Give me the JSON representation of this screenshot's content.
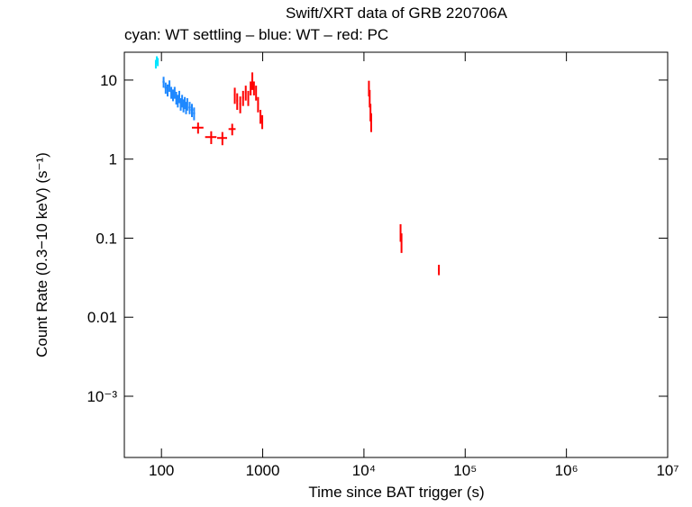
{
  "chart_data": {
    "type": "errorbar-scatter",
    "title": "Swift/XRT data of GRB 220706A",
    "subtitle": "cyan: WT settling – blue: WT – red: PC",
    "x_label": "Time since BAT trigger (s)",
    "y_label": "Count Rate (0.3−10 keV) (s⁻¹)",
    "x_log": true,
    "y_log": true,
    "xlim": [
      43,
      10000000
    ],
    "ylim": [
      0.000168,
      22.5
    ],
    "xticks": [
      100,
      1000,
      {
        "value": 10000,
        "label": "10⁴"
      },
      {
        "value": 100000,
        "label": "10⁵"
      },
      {
        "value": 1000000,
        "label": "10⁶"
      },
      {
        "value": 10000000,
        "label": "10⁷"
      }
    ],
    "yticks": [
      10,
      1,
      0.1,
      0.01,
      {
        "value": 0.001,
        "label": "10⁻³"
      }
    ],
    "series": [
      {
        "name": "WT settling",
        "color": "#00e5ff",
        "x": [
          88,
          90,
          92
        ],
        "values": [
          16,
          18,
          17
        ],
        "xerr": [
          1,
          1,
          1
        ],
        "yerr": [
          2,
          2,
          2
        ]
      },
      {
        "name": "WT",
        "color": "#1e88ff",
        "x": [
          105,
          110,
          115,
          120,
          125,
          130,
          135,
          140,
          145,
          150,
          155,
          160,
          165,
          170,
          175,
          180,
          190,
          200,
          210
        ],
        "values": [
          9.5,
          8,
          7.5,
          8.5,
          7,
          6.5,
          7,
          6,
          5.5,
          6.2,
          5,
          5.5,
          4.8,
          5.2,
          4.5,
          5,
          4.5,
          4.2,
          3.8
        ],
        "xerr": [
          2.5,
          2.5,
          2.5,
          2.5,
          2.5,
          2.5,
          2.5,
          2.5,
          2.5,
          2.5,
          2.5,
          2.5,
          2.5,
          2.5,
          2.5,
          2.5,
          5,
          5,
          5
        ],
        "yerr": [
          1.5,
          1.3,
          1.3,
          1.4,
          1.2,
          1.1,
          1.2,
          1.1,
          1,
          1.1,
          0.9,
          1,
          0.9,
          0.9,
          0.8,
          0.9,
          0.8,
          0.8,
          0.7
        ]
      },
      {
        "name": "PC",
        "color": "#ff0000",
        "x": [
          230,
          310,
          400,
          500,
          530,
          560,
          600,
          640,
          680,
          720,
          760,
          790,
          820,
          860,
          900,
          950,
          990,
          11200,
          11400,
          11600,
          11800,
          23000,
          23500,
          55000
        ],
        "values": [
          2.5,
          1.9,
          1.85,
          2.4,
          6.5,
          5.5,
          5,
          6,
          7,
          6,
          8,
          10,
          8,
          7,
          5,
          3.5,
          3,
          8,
          6,
          4,
          3,
          0.12,
          0.09,
          0.04
        ],
        "xerr": [
          30,
          40,
          45,
          40,
          10,
          10,
          12,
          12,
          12,
          12,
          12,
          12,
          12,
          12,
          15,
          15,
          15,
          100,
          100,
          100,
          100,
          300,
          300,
          1000
        ],
        "yerr": [
          0.4,
          0.35,
          0.35,
          0.4,
          1.5,
          1.3,
          1.2,
          1.3,
          1.5,
          1.3,
          1.6,
          2.5,
          1.6,
          1.5,
          1.1,
          0.7,
          0.6,
          1.8,
          1.5,
          1,
          0.8,
          0.03,
          0.025,
          0.006
        ]
      }
    ]
  }
}
